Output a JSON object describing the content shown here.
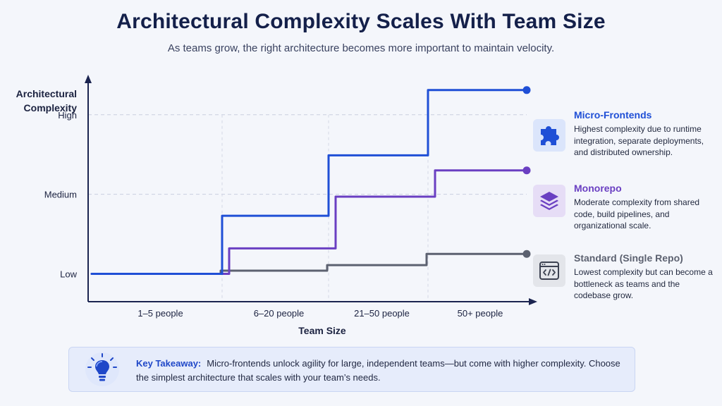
{
  "header": {
    "title": "Architectural Complexity Scales With Team Size",
    "subtitle": "As teams grow, the right architecture becomes more important to maintain velocity."
  },
  "chart_data": {
    "type": "line",
    "step": true,
    "xlabel": "Team Size",
    "ylabel_lines": [
      "Architectural",
      "Complexity"
    ],
    "categories": [
      "1–5 people",
      "6–20 people",
      "21–50 people",
      "50+ people"
    ],
    "y_levels": [
      {
        "label": "Low",
        "value": 1
      },
      {
        "label": "Medium",
        "value": 2
      },
      {
        "label": "High",
        "value": 3
      }
    ],
    "ylim": [
      0.65,
      3.45
    ],
    "grid": "dashed horizontal at Medium and High",
    "series": [
      {
        "name": "Micro-Frontends",
        "color": "#1f4fd6",
        "values": [
          1.0,
          1.73,
          2.49,
          3.31
        ]
      },
      {
        "name": "Monorepo",
        "color": "#6a3fc2",
        "values": [
          1.0,
          1.32,
          1.97,
          2.3
        ]
      },
      {
        "name": "Standard (Single Repo)",
        "color": "#5c6170",
        "values": [
          1.0,
          1.04,
          1.11,
          1.25
        ]
      }
    ]
  },
  "legend": [
    {
      "title": "Micro-Frontends",
      "color": "#1f4fd6",
      "icon_bg": "#dbe5fb",
      "icon": "puzzle-icon",
      "description": "Highest complexity due to runtime integration, separate deployments, and distributed ownership."
    },
    {
      "title": "Monorepo",
      "color": "#6a3fc2",
      "icon_bg": "#e6ddf6",
      "icon": "layers-icon",
      "description": "Moderate complexity from shared code, build pipelines, and organizational scale."
    },
    {
      "title": "Standard (Single Repo)",
      "color": "#5c6170",
      "icon_bg": "#e3e5ea",
      "icon": "code-window-icon",
      "description": "Lowest complexity but can become a bottleneck as teams and the codebase grow."
    }
  ],
  "takeaway": {
    "label": "Key Takeaway:",
    "text": "Micro-frontends unlock agility for large, independent teams—but come with higher complexity. Choose the simplest architecture that scales with your team’s needs.",
    "icon": "lightbulb-icon"
  }
}
